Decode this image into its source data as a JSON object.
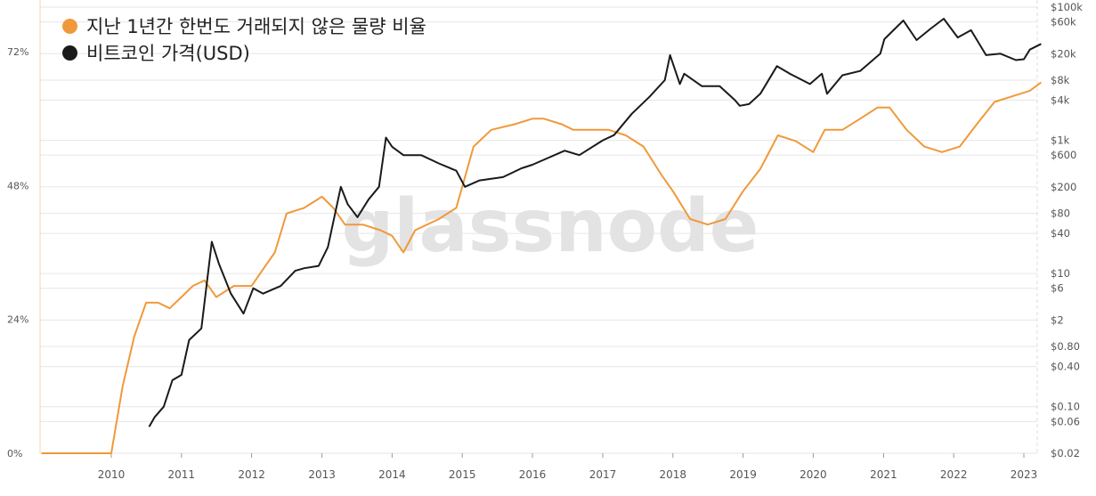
{
  "chart_data": {
    "type": "line",
    "watermark": "glassnode",
    "colors": {
      "supply": "#f0993a",
      "price": "#1a1a1a",
      "grid": "#e6e6e6",
      "tick": "#555555"
    },
    "x_ticks": [
      "2010",
      "2011",
      "2012",
      "2013",
      "2014",
      "2015",
      "2016",
      "2017",
      "2018",
      "2019",
      "2020",
      "2021",
      "2022",
      "2023"
    ],
    "left_axis": {
      "ylim": [
        0,
        80
      ],
      "ticks": [
        {
          "v": 0,
          "label": "0%"
        },
        {
          "v": 24,
          "label": "24%"
        },
        {
          "v": 48,
          "label": "48%"
        },
        {
          "v": 72,
          "label": "72%"
        }
      ]
    },
    "right_axis": {
      "scale": "log",
      "ylim": [
        0.02,
        100000
      ],
      "ticks": [
        {
          "v": 0.02,
          "label": "$0.02"
        },
        {
          "v": 0.06,
          "label": "$0.06"
        },
        {
          "v": 0.1,
          "label": "$0.10"
        },
        {
          "v": 0.4,
          "label": "$0.40"
        },
        {
          "v": 0.8,
          "label": "$0.80"
        },
        {
          "v": 2,
          "label": "$2"
        },
        {
          "v": 6,
          "label": "$6"
        },
        {
          "v": 10,
          "label": "$10"
        },
        {
          "v": 40,
          "label": "$40"
        },
        {
          "v": 80,
          "label": "$80"
        },
        {
          "v": 200,
          "label": "$200"
        },
        {
          "v": 600,
          "label": "$600"
        },
        {
          "v": 1000,
          "label": "$1k"
        },
        {
          "v": 4000,
          "label": "$4k"
        },
        {
          "v": 8000,
          "label": "$8k"
        },
        {
          "v": 20000,
          "label": "$20k"
        },
        {
          "v": 60000,
          "label": "$60k"
        },
        {
          "v": 100000,
          "label": "$100k"
        }
      ]
    },
    "series": [
      {
        "name": "지난 1년간 한번도 거래되지 않은 물량 비율",
        "axis": "left",
        "points": [
          [
            "2009-01-03",
            0
          ],
          [
            "2010-01-01",
            0
          ],
          [
            "2010-03-01",
            12
          ],
          [
            "2010-05-01",
            21
          ],
          [
            "2010-07-01",
            27
          ],
          [
            "2010-09-01",
            27
          ],
          [
            "2010-11-01",
            26
          ],
          [
            "2011-01-01",
            28
          ],
          [
            "2011-03-01",
            30
          ],
          [
            "2011-05-01",
            31
          ],
          [
            "2011-07-01",
            28
          ],
          [
            "2011-10-01",
            30
          ],
          [
            "2012-01-01",
            30
          ],
          [
            "2012-03-01",
            33
          ],
          [
            "2012-05-01",
            36
          ],
          [
            "2012-07-01",
            43
          ],
          [
            "2012-10-01",
            44
          ],
          [
            "2013-01-01",
            46
          ],
          [
            "2013-03-01",
            44
          ],
          [
            "2013-05-01",
            41
          ],
          [
            "2013-08-01",
            41
          ],
          [
            "2013-11-01",
            40
          ],
          [
            "2014-01-01",
            39
          ],
          [
            "2014-03-01",
            36
          ],
          [
            "2014-05-01",
            40
          ],
          [
            "2014-09-01",
            42
          ],
          [
            "2014-12-01",
            44
          ],
          [
            "2015-03-01",
            55
          ],
          [
            "2015-06-01",
            58
          ],
          [
            "2015-10-01",
            59
          ],
          [
            "2016-01-01",
            60
          ],
          [
            "2016-03-01",
            60
          ],
          [
            "2016-06-01",
            59
          ],
          [
            "2016-08-01",
            58
          ],
          [
            "2016-11-01",
            58
          ],
          [
            "2017-02-01",
            58
          ],
          [
            "2017-05-01",
            57
          ],
          [
            "2017-08-01",
            55
          ],
          [
            "2017-11-01",
            50
          ],
          [
            "2018-01-01",
            47
          ],
          [
            "2018-04-01",
            42
          ],
          [
            "2018-07-01",
            41
          ],
          [
            "2018-10-01",
            42
          ],
          [
            "2019-01-01",
            47
          ],
          [
            "2019-04-01",
            51
          ],
          [
            "2019-07-01",
            57
          ],
          [
            "2019-10-01",
            56
          ],
          [
            "2020-01-01",
            54
          ],
          [
            "2020-03-01",
            58
          ],
          [
            "2020-06-01",
            58
          ],
          [
            "2020-09-01",
            60
          ],
          [
            "2020-12-01",
            62
          ],
          [
            "2021-02-01",
            62
          ],
          [
            "2021-05-01",
            58
          ],
          [
            "2021-08-01",
            55
          ],
          [
            "2021-11-01",
            54
          ],
          [
            "2022-02-01",
            55
          ],
          [
            "2022-05-01",
            59
          ],
          [
            "2022-08-01",
            63
          ],
          [
            "2022-11-01",
            64
          ],
          [
            "2023-02-01",
            65
          ],
          [
            "2023-04-01",
            66.5
          ]
        ]
      },
      {
        "name": "비트코인 가격(USD)",
        "axis": "right",
        "points": [
          [
            "2010-07-17",
            0.05
          ],
          [
            "2010-08-15",
            0.07
          ],
          [
            "2010-10-01",
            0.1
          ],
          [
            "2010-11-15",
            0.25
          ],
          [
            "2011-01-01",
            0.3
          ],
          [
            "2011-02-10",
            1
          ],
          [
            "2011-04-15",
            1.5
          ],
          [
            "2011-06-08",
            30
          ],
          [
            "2011-07-15",
            14
          ],
          [
            "2011-09-15",
            5
          ],
          [
            "2011-11-20",
            2.5
          ],
          [
            "2012-01-10",
            6
          ],
          [
            "2012-03-01",
            5
          ],
          [
            "2012-06-01",
            6.5
          ],
          [
            "2012-08-15",
            11
          ],
          [
            "2012-10-01",
            12
          ],
          [
            "2012-12-15",
            13
          ],
          [
            "2013-02-01",
            25
          ],
          [
            "2013-04-09",
            200
          ],
          [
            "2013-05-15",
            110
          ],
          [
            "2013-07-05",
            70
          ],
          [
            "2013-09-01",
            130
          ],
          [
            "2013-10-25",
            200
          ],
          [
            "2013-11-30",
            1100
          ],
          [
            "2014-01-01",
            800
          ],
          [
            "2014-03-01",
            600
          ],
          [
            "2014-06-01",
            600
          ],
          [
            "2014-09-01",
            450
          ],
          [
            "2014-12-01",
            350
          ],
          [
            "2015-01-15",
            200
          ],
          [
            "2015-04-01",
            250
          ],
          [
            "2015-08-01",
            280
          ],
          [
            "2015-11-05",
            380
          ],
          [
            "2016-01-01",
            430
          ],
          [
            "2016-06-17",
            700
          ],
          [
            "2016-09-01",
            600
          ],
          [
            "2017-01-01",
            1000
          ],
          [
            "2017-03-01",
            1200
          ],
          [
            "2017-06-01",
            2500
          ],
          [
            "2017-09-01",
            4500
          ],
          [
            "2017-11-20",
            8000
          ],
          [
            "2017-12-17",
            19000
          ],
          [
            "2018-02-06",
            7000
          ],
          [
            "2018-03-01",
            10000
          ],
          [
            "2018-06-01",
            6500
          ],
          [
            "2018-09-01",
            6500
          ],
          [
            "2018-11-20",
            4000
          ],
          [
            "2018-12-15",
            3300
          ],
          [
            "2019-02-01",
            3500
          ],
          [
            "2019-04-01",
            5000
          ],
          [
            "2019-06-26",
            13000
          ],
          [
            "2019-09-01",
            10000
          ],
          [
            "2019-12-15",
            7000
          ],
          [
            "2020-02-15",
            10000
          ],
          [
            "2020-03-13",
            5000
          ],
          [
            "2020-06-01",
            9500
          ],
          [
            "2020-09-01",
            11000
          ],
          [
            "2020-12-15",
            20000
          ],
          [
            "2021-01-05",
            33000
          ],
          [
            "2021-04-14",
            63000
          ],
          [
            "2021-06-22",
            32000
          ],
          [
            "2021-09-01",
            47000
          ],
          [
            "2021-11-10",
            67000
          ],
          [
            "2022-01-22",
            35000
          ],
          [
            "2022-04-01",
            45000
          ],
          [
            "2022-06-18",
            19000
          ],
          [
            "2022-09-01",
            20000
          ],
          [
            "2022-11-21",
            16000
          ],
          [
            "2023-01-01",
            16500
          ],
          [
            "2023-02-01",
            23000
          ],
          [
            "2023-04-01",
            28000
          ]
        ]
      }
    ]
  }
}
